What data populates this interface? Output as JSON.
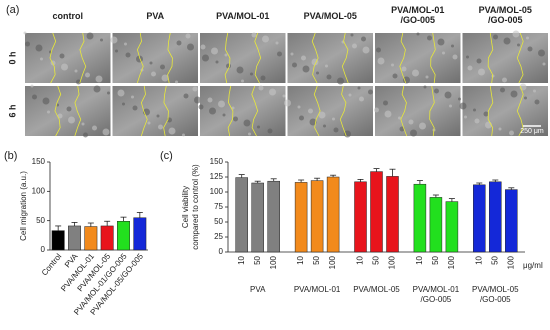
{
  "panel_labels": [
    "(a)",
    "(b)",
    "(c)"
  ],
  "image_panel": {
    "columns": [
      [
        "control"
      ],
      [
        "PVA"
      ],
      [
        "PVA/MOL-01"
      ],
      [
        "PVA/MOL-05"
      ],
      [
        "PVA/MOL-01",
        "/GO-005"
      ],
      [
        "PVA/MOL-05",
        "/GO-005"
      ]
    ],
    "rows": [
      "0 h",
      "6 h"
    ],
    "scale_bar": "250 μm"
  },
  "chart_data": [
    {
      "type": "bar",
      "y_label": "Cell migration  (a.u.)",
      "categories": [
        "Control",
        "PVA",
        "PVA/MOL-01",
        "PVA/MOL-05",
        "PVA/MOL-01/GO-005",
        "PVA/MOL-05/GO-005"
      ],
      "values": [
        33,
        41,
        40,
        41,
        49,
        55
      ],
      "errors": [
        8,
        6,
        6,
        8,
        7,
        9
      ],
      "colors": [
        "#000000",
        "#808080",
        "#f28a1c",
        "#e8141c",
        "#22e01e",
        "#1428d8"
      ],
      "ylim": [
        0,
        150
      ],
      "yticks": [
        0,
        50,
        100,
        150
      ]
    },
    {
      "type": "grouped_bar",
      "y_label": [
        "Cell viability",
        "compared to control   (%)"
      ],
      "doses": [
        "10",
        "50",
        "100"
      ],
      "dose_unit": "μg/ml",
      "groups": [
        {
          "name": [
            "PVA"
          ],
          "color": "#808080",
          "values": [
            124,
            115,
            118
          ],
          "errors": [
            5,
            3,
            4
          ]
        },
        {
          "name": [
            "PVA/MOL-01"
          ],
          "color": "#f28a1c",
          "values": [
            116,
            119,
            125
          ],
          "errors": [
            4,
            4,
            3
          ]
        },
        {
          "name": [
            "PVA/MOL-05"
          ],
          "color": "#e8141c",
          "values": [
            117,
            134,
            126
          ],
          "errors": [
            4,
            5,
            12
          ]
        },
        {
          "name": [
            "PVA/MOL-01",
            "/GO-005"
          ],
          "color": "#22e01e",
          "values": [
            113,
            91,
            84
          ],
          "errors": [
            6,
            4,
            5
          ]
        },
        {
          "name": [
            "PVA/MOL-05",
            "/GO-005"
          ],
          "color": "#1428d8",
          "values": [
            112,
            117,
            104
          ],
          "errors": [
            3,
            3,
            3
          ]
        }
      ],
      "ylim": [
        0,
        150
      ],
      "yticks": [
        0,
        25,
        50,
        75,
        100,
        125,
        150
      ]
    }
  ]
}
